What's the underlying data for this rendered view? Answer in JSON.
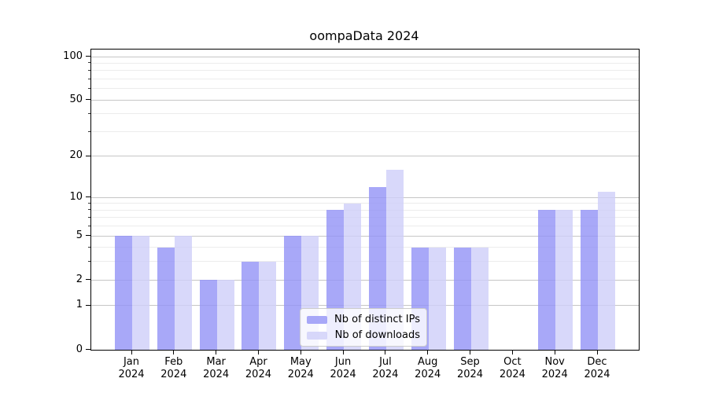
{
  "chart_data": {
    "type": "bar",
    "title": "oompaData 2024",
    "x_categories": [
      {
        "month": "Jan",
        "year": "2024"
      },
      {
        "month": "Feb",
        "year": "2024"
      },
      {
        "month": "Mar",
        "year": "2024"
      },
      {
        "month": "Apr",
        "year": "2024"
      },
      {
        "month": "May",
        "year": "2024"
      },
      {
        "month": "Jun",
        "year": "2024"
      },
      {
        "month": "Jul",
        "year": "2024"
      },
      {
        "month": "Aug",
        "year": "2024"
      },
      {
        "month": "Sep",
        "year": "2024"
      },
      {
        "month": "Oct",
        "year": "2024"
      },
      {
        "month": "Nov",
        "year": "2024"
      },
      {
        "month": "Dec",
        "year": "2024"
      }
    ],
    "series": [
      {
        "name": "Nb of distinct IPs",
        "color": "#9292f6",
        "alpha": 0.8,
        "values": [
          5,
          4,
          2,
          3,
          5,
          8,
          12,
          4,
          4,
          0,
          8,
          8
        ]
      },
      {
        "name": "Nb of downloads",
        "color": "#cecef9",
        "alpha": 0.8,
        "values": [
          5,
          5,
          2,
          3,
          5,
          9,
          16,
          4,
          4,
          0,
          8,
          11
        ]
      }
    ],
    "y_axis": {
      "scale": "log1p",
      "ticks": [
        0,
        1,
        2,
        5,
        10,
        20,
        50,
        100
      ],
      "minor_ticks": [
        3,
        4,
        6,
        7,
        8,
        9,
        30,
        40,
        60,
        70,
        80,
        90
      ],
      "ylim": [
        0,
        112
      ]
    },
    "grid": {
      "major_color": "#c6c6c6",
      "minor_color": "#ececec"
    },
    "legend_position": "lower center"
  }
}
